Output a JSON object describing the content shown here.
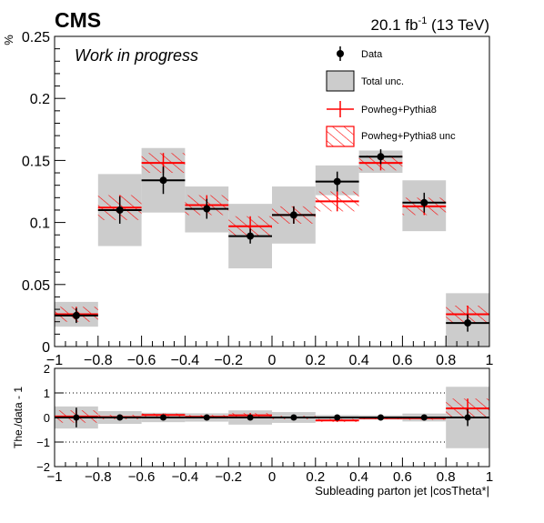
{
  "header": {
    "experiment": "CMS",
    "status": "Work in progress",
    "lumi": "20.1 fb",
    "lumi_sup": "-1",
    "energy": " (13 TeV)"
  },
  "colors": {
    "data": "#000000",
    "total_unc_fill": "#cccccc",
    "mc": "#ff0000",
    "dotted_lines": "#000000"
  },
  "chart_data": [
    {
      "type": "histogram",
      "ylabel": "%",
      "ylim": [
        0,
        0.25
      ],
      "xlim": [
        -1,
        1
      ],
      "x_ticks": [
        "−1",
        "−0.8",
        "−0.6",
        "−0.4",
        "−0.2",
        "0",
        "0.2",
        "0.4",
        "0.6",
        "0.8",
        "1"
      ],
      "y_ticks": [
        "0",
        "0.05",
        "0.1",
        "0.15",
        "0.2",
        "0.25"
      ],
      "bin_edges": [
        -1,
        -0.8,
        -0.6,
        -0.4,
        -0.2,
        0,
        0.2,
        0.4,
        0.6,
        0.8,
        1
      ],
      "legend": {
        "position": "top-right",
        "entries": [
          {
            "label": "Data",
            "marker": "data"
          },
          {
            "label": "Total unc.",
            "marker": "box"
          },
          {
            "label": "Powheg+Pythia8",
            "marker": "mc"
          },
          {
            "label": "Powheg+Pythia8 unc",
            "marker": "hatch"
          }
        ]
      },
      "series": [
        {
          "name": "Data",
          "values": [
            0.025,
            0.11,
            0.134,
            0.111,
            0.089,
            0.106,
            0.133,
            0.153,
            0.116,
            0.019
          ],
          "stat_err": [
            0.006,
            0.011,
            0.011,
            0.008,
            0.006,
            0.007,
            0.008,
            0.006,
            0.008,
            0.007
          ],
          "total_unc_low": [
            0.016,
            0.081,
            0.108,
            0.092,
            0.063,
            0.083,
            0.122,
            0.14,
            0.093,
            0.0
          ],
          "total_unc_high": [
            0.036,
            0.139,
            0.16,
            0.129,
            0.115,
            0.129,
            0.146,
            0.158,
            0.134,
            0.043
          ]
        },
        {
          "name": "Powheg+Pythia8",
          "values": [
            0.026,
            0.112,
            0.148,
            0.114,
            0.097,
            0.106,
            0.117,
            0.148,
            0.113,
            0.026
          ],
          "unc": [
            0.006,
            0.01,
            0.008,
            0.008,
            0.008,
            0.007,
            0.008,
            0.006,
            0.007,
            0.007
          ]
        }
      ]
    },
    {
      "type": "ratio",
      "ylabel": "The./data - 1",
      "xlabel": "Subleading parton jet |cosTheta*|",
      "ylim": [
        -2,
        2
      ],
      "y_ticks": [
        "−2",
        "−1",
        "0",
        "1",
        "2"
      ],
      "reference_lines": [
        -1,
        1
      ],
      "data_err": [
        0.4,
        0.1,
        0.1,
        0.08,
        0.07,
        0.07,
        0.06,
        0.04,
        0.07,
        0.35
      ],
      "total_unc": [
        0.45,
        0.26,
        0.19,
        0.17,
        0.29,
        0.22,
        0.1,
        0.09,
        0.16,
        1.25
      ],
      "mc_ratio": [
        0.04,
        0.02,
        0.1,
        0.03,
        0.09,
        0.0,
        -0.12,
        -0.03,
        -0.03,
        0.37
      ],
      "mc_unc": [
        0.25,
        0.09,
        0.06,
        0.07,
        0.09,
        0.07,
        0.06,
        0.04,
        0.06,
        0.4
      ]
    }
  ]
}
